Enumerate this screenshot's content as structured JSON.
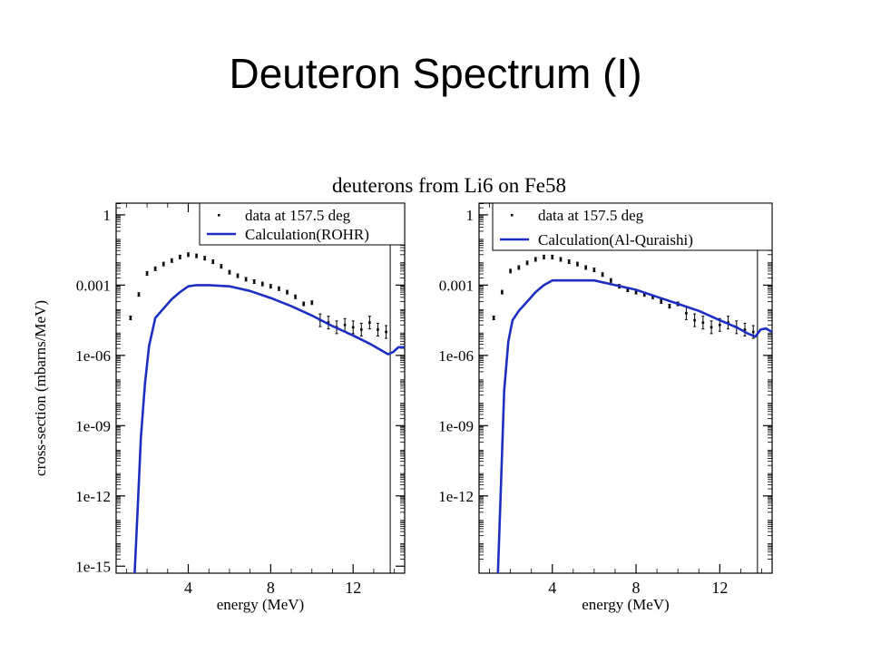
{
  "slide": {
    "title": "Deuteron Spectrum (I)"
  },
  "figure": {
    "title": "deuterons from Li6 on Fe58"
  },
  "chart_data": [
    {
      "type": "line",
      "title": "",
      "xlabel": "energy (MeV)",
      "ylabel": "cross-section (mbarns/MeV)",
      "xlim": [
        0.5,
        14.5
      ],
      "ylim_log10": [
        -15.3,
        0.5
      ],
      "x_ticks": [
        4,
        8,
        12
      ],
      "y_ticks": [
        {
          "label": "1e-15",
          "exp": -15
        },
        {
          "label": "1e-12",
          "exp": -12
        },
        {
          "label": "1e-09",
          "exp": -9
        },
        {
          "label": "1e-06",
          "exp": -6
        },
        {
          "label": "0.001",
          "exp": -3
        },
        {
          "label": "1",
          "exp": 0
        }
      ],
      "legend": {
        "placement": "top-right",
        "entries": [
          "data at 157.5 deg",
          "Calculation(ROHR)"
        ]
      },
      "series": [
        {
          "name": "data at 157.5 deg",
          "kind": "points",
          "x": [
            1.2,
            1.6,
            2.0,
            2.4,
            2.8,
            3.2,
            3.6,
            4.0,
            4.4,
            4.8,
            5.2,
            5.6,
            6.0,
            6.4,
            6.8,
            7.2,
            7.6,
            8.0,
            8.4,
            8.8,
            9.2,
            9.6,
            10.0,
            10.4,
            10.8,
            11.2,
            11.6,
            12.0,
            12.4,
            12.8,
            13.2,
            13.6
          ],
          "log10_y": [
            -4.4,
            -3.4,
            -2.5,
            -2.3,
            -2.1,
            -1.95,
            -1.8,
            -1.7,
            -1.75,
            -1.85,
            -2.0,
            -2.2,
            -2.45,
            -2.6,
            -2.75,
            -2.85,
            -2.95,
            -3.05,
            -3.15,
            -3.3,
            -3.5,
            -3.8,
            -3.75,
            -4.5,
            -4.6,
            -4.8,
            -4.7,
            -4.8,
            -4.9,
            -4.6,
            -4.9,
            -5.0
          ]
        },
        {
          "name": "Calculation(ROHR)",
          "kind": "line",
          "color": "#1c2fc0",
          "x": [
            1.4,
            1.55,
            1.7,
            1.9,
            2.1,
            2.4,
            2.8,
            3.2,
            3.6,
            4.0,
            4.4,
            5.0,
            6.0,
            7.0,
            8.0,
            9.0,
            10.0,
            11.0,
            12.0,
            12.8,
            13.3,
            13.7,
            13.95,
            14.2,
            14.5
          ],
          "log10_y": [
            -15.3,
            -12.5,
            -9.5,
            -7.2,
            -5.6,
            -4.4,
            -4.0,
            -3.6,
            -3.3,
            -3.05,
            -3.0,
            -3.0,
            -3.05,
            -3.25,
            -3.55,
            -3.9,
            -4.3,
            -4.75,
            -5.15,
            -5.5,
            -5.75,
            -5.95,
            -5.85,
            -5.65,
            -5.65
          ]
        }
      ]
    },
    {
      "type": "line",
      "title": "",
      "xlabel": "energy (MeV)",
      "ylabel": "",
      "xlim": [
        0.5,
        14.5
      ],
      "ylim_log10": [
        -15.3,
        0.5
      ],
      "x_ticks": [
        4,
        8,
        12
      ],
      "y_ticks": [
        {
          "label": "1e-12",
          "exp": -12
        },
        {
          "label": "1e-09",
          "exp": -9
        },
        {
          "label": "1e-06",
          "exp": -6
        },
        {
          "label": "0.001",
          "exp": -3
        },
        {
          "label": "1",
          "exp": 0
        }
      ],
      "legend": {
        "placement": "top-right",
        "entries": [
          "data at 157.5 deg",
          "Calculation(Al-Quraishi)"
        ]
      },
      "series": [
        {
          "name": "data at 157.5 deg",
          "kind": "points",
          "x": [
            1.2,
            1.6,
            2.0,
            2.4,
            2.8,
            3.2,
            3.6,
            4.0,
            4.4,
            4.8,
            5.2,
            5.6,
            6.0,
            6.4,
            6.8,
            7.2,
            7.6,
            8.0,
            8.4,
            8.8,
            9.2,
            9.6,
            10.0,
            10.4,
            10.8,
            11.2,
            11.6,
            12.0,
            12.4,
            12.8,
            13.2,
            13.6
          ],
          "log10_y": [
            -4.4,
            -3.3,
            -2.4,
            -2.25,
            -2.05,
            -1.9,
            -1.8,
            -1.8,
            -1.9,
            -2.0,
            -2.1,
            -2.25,
            -2.35,
            -2.55,
            -2.8,
            -3.05,
            -3.2,
            -3.3,
            -3.4,
            -3.5,
            -3.7,
            -3.9,
            -3.8,
            -4.2,
            -4.5,
            -4.6,
            -4.8,
            -4.7,
            -4.6,
            -4.8,
            -4.9,
            -5.0
          ]
        },
        {
          "name": "Calculation(Al-Quraishi)",
          "kind": "line",
          "color": "#1c2fc0",
          "x": [
            1.4,
            1.55,
            1.7,
            1.9,
            2.1,
            2.4,
            2.8,
            3.2,
            3.6,
            4.0,
            4.4,
            5.0,
            6.0,
            7.0,
            8.0,
            9.0,
            10.0,
            11.0,
            12.0,
            12.8,
            13.3,
            13.7,
            13.95,
            14.2,
            14.5
          ],
          "log10_y": [
            -15.3,
            -11.5,
            -7.5,
            -5.4,
            -4.5,
            -4.1,
            -3.7,
            -3.3,
            -3.0,
            -2.8,
            -2.8,
            -2.8,
            -2.8,
            -3.0,
            -3.2,
            -3.5,
            -3.8,
            -4.1,
            -4.5,
            -4.8,
            -5.05,
            -5.2,
            -4.9,
            -4.85,
            -5.0
          ]
        }
      ]
    }
  ]
}
